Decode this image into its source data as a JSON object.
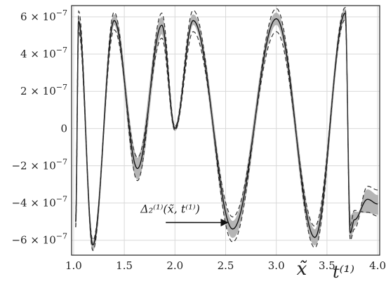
{
  "chart_data": {
    "type": "line",
    "title": "",
    "xlabel": "x̃",
    "xlabel_extra": "t⁽¹⁾",
    "ylabel": "",
    "xlim": [
      0.98,
      4.02
    ],
    "ylim": [
      -6.8e-07,
      6.6e-07
    ],
    "grid": true,
    "x_ticks": [
      {
        "value": 1.0,
        "label": "1.0"
      },
      {
        "value": 1.5,
        "label": "1.5"
      },
      {
        "value": 2.0,
        "label": "2.0"
      },
      {
        "value": 2.5,
        "label": "2.5"
      },
      {
        "value": 3.0,
        "label": "3.0"
      },
      {
        "value": 3.5,
        "label": "3.5"
      },
      {
        "value": 4.0,
        "label": "4.0"
      }
    ],
    "y_ticks": [
      {
        "value": 6e-07,
        "mant": "6",
        "exp": "−7",
        "neg": false
      },
      {
        "value": 4e-07,
        "mant": "4",
        "exp": "−7",
        "neg": false
      },
      {
        "value": 2e-07,
        "mant": "2",
        "exp": "−7",
        "neg": false
      },
      {
        "value": 0,
        "mant": "0",
        "exp": "",
        "neg": false
      },
      {
        "value": -2e-07,
        "mant": "2",
        "exp": "−7",
        "neg": true
      },
      {
        "value": -4e-07,
        "mant": "4",
        "exp": "−7",
        "neg": true
      },
      {
        "value": -6e-07,
        "mant": "6",
        "exp": "−7",
        "neg": true
      }
    ],
    "annotation": {
      "label": "Δ₂⁽¹⁾(x̃, t⁽¹⁾)",
      "label_x": 1.66,
      "label_y": -4.52e-07,
      "arrow_to_x": 2.52,
      "arrow_to_y": -5.05e-07
    },
    "colors": {
      "mean": "#111111",
      "band": "#a9a9a9",
      "dashed": "#333333",
      "grid": "#d9d9d9"
    },
    "series": [
      {
        "style": "band",
        "x": [
          1.02,
          1.05,
          1.19,
          1.4,
          1.63,
          1.87,
          2.0,
          2.18,
          2.57,
          3.0,
          3.38,
          3.68,
          3.73,
          3.77,
          3.9,
          4.0
        ],
        "y_low": [
          -5.3e-07,
          5.4e-07,
          -6.5e-07,
          5.6e-07,
          -2.7e-07,
          5.1e-07,
          -1e-08,
          5.6e-07,
          -5.85e-07,
          5.6e-07,
          -6.25e-07,
          5.95e-07,
          -4.7e-07,
          -4.5e-07,
          -4.5e-07,
          -4.6e-07
        ],
        "y_high": [
          -4.7e-07,
          5.95e-07,
          -6.1e-07,
          6.1e-07,
          -1.6e-07,
          5.95e-07,
          1e-08,
          6.1e-07,
          -5e-07,
          6.2e-07,
          -5.45e-07,
          6.4e-07,
          -5.9e-07,
          -5.2e-07,
          -3.3e-07,
          -3.6e-07
        ]
      },
      {
        "style": "solid",
        "x": [
          1.02,
          1.05,
          1.19,
          1.4,
          1.63,
          1.87,
          2.0,
          2.18,
          2.57,
          3.0,
          3.38,
          3.68,
          3.73,
          3.77,
          3.9,
          4.0
        ],
        "y": [
          -5e-07,
          5.75e-07,
          -6.25e-07,
          5.8e-07,
          -2.15e-07,
          5.55e-07,
          0,
          5.8e-07,
          -5.4e-07,
          5.9e-07,
          -5.85e-07,
          6.2e-07,
          -5.6e-07,
          -4.9e-07,
          -3.8e-07,
          -4.05e-07
        ]
      },
      {
        "style": "dashed",
        "x": [
          1.02,
          1.05,
          1.19,
          1.4,
          1.63,
          1.87,
          2.0,
          2.18,
          2.57,
          3.0,
          3.38,
          3.68,
          3.73,
          3.77,
          3.9,
          4.0
        ],
        "y": [
          -4.7e-07,
          6.3e-07,
          -6.55e-07,
          6.25e-07,
          -2.8e-07,
          6.2e-07,
          1e-08,
          6.35e-07,
          -6.1e-07,
          6.45e-07,
          -6.4e-07,
          6.5e-07,
          -6e-07,
          -5.4e-07,
          -3.1e-07,
          -3.3e-07
        ]
      },
      {
        "style": "dashed",
        "x": [
          1.02,
          1.05,
          1.19,
          1.4,
          1.63,
          1.87,
          2.0,
          2.18,
          2.57,
          3.0,
          3.38,
          3.68,
          3.73,
          3.77,
          3.9,
          4.0
        ],
        "y": [
          -5.3e-07,
          5.2e-07,
          -6e-07,
          5.3e-07,
          -1.55e-07,
          4.85e-07,
          -1e-08,
          5.2e-07,
          -4.75e-07,
          5.2e-07,
          -5.25e-07,
          5.85e-07,
          -5.2e-07,
          -4.4e-07,
          -4.5e-07,
          -4.7e-07
        ]
      }
    ]
  }
}
